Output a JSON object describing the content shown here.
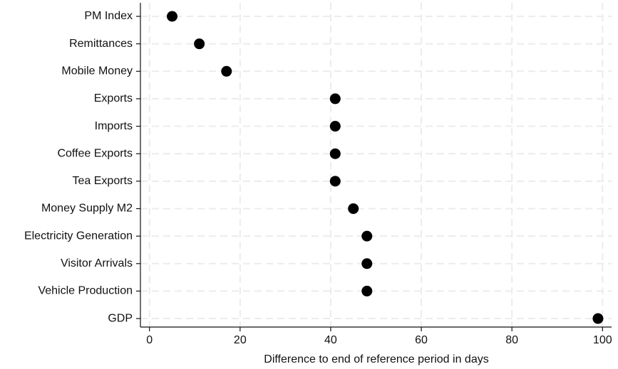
{
  "chart_data": {
    "type": "dot",
    "x_label": "Difference to end of reference period in days",
    "categories": [
      "PM Index",
      "Remittances",
      "Mobile Money",
      "Exports",
      "Imports",
      "Coffee Exports",
      "Tea Exports",
      "Money Supply M2",
      "Electricity Generation",
      "Visitor Arrivals",
      "Vehicle Production",
      "GDP"
    ],
    "values": [
      5,
      11,
      17,
      41,
      41,
      41,
      41,
      45,
      48,
      48,
      48,
      99
    ],
    "color": "#000000",
    "xlim": [
      -2,
      102
    ],
    "xticks": [
      0,
      20,
      40,
      60,
      80,
      100
    ],
    "grid": true
  }
}
